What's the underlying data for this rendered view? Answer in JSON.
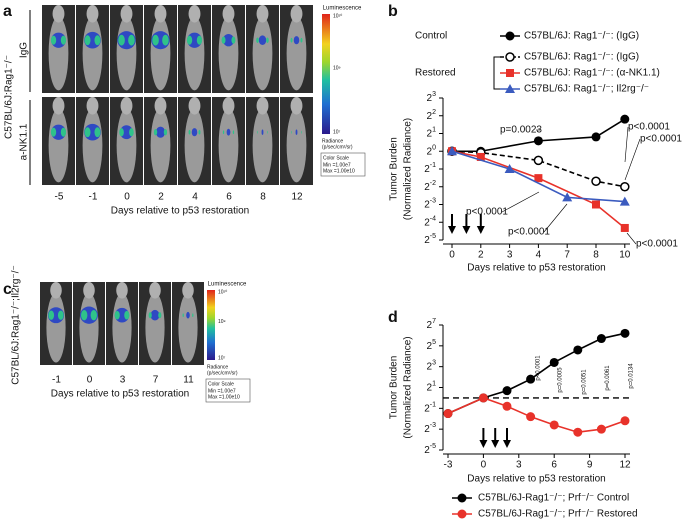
{
  "panels": {
    "a": {
      "letter": "a",
      "strain": "C57BL/6J:Rag1⁻/⁻",
      "row_labels": [
        "IgG",
        "a-NK1.1"
      ],
      "days": [
        "-5",
        "-1",
        "0",
        "2",
        "4",
        "6",
        "8",
        "12"
      ],
      "xlabel": "Days relative to p53 restoration",
      "colorbar": {
        "title": "Luminescence",
        "top": "10¹⁰",
        "mid": "10⁹",
        "bottom": "10⁷",
        "unit_label": "Radiance",
        "unit": "(p/sec/cm²/sr)",
        "scale_title": "Color Scale",
        "min": "Min =1.00e7",
        "max": "Max =1.00e10"
      }
    },
    "c": {
      "letter": "c",
      "strain": "C57BL/6J:Rag1⁻/⁻;Il2rg⁻/⁻",
      "days": [
        "-1",
        "0",
        "3",
        "7",
        "11"
      ],
      "xlabel": "Days relative to p53 restoration",
      "colorbar": {
        "title": "Luminescence",
        "top": "10¹⁰",
        "mid": "10⁹",
        "bottom": "10⁷",
        "unit_label": "Radiance",
        "unit": "(p/sec/cm²/sr)",
        "scale_title": "Color Scale",
        "min": "Min =1.00e7",
        "max": "Max =1.00e10"
      }
    }
  },
  "chart_data": [
    {
      "type": "line",
      "panel_label": "b",
      "legend_titles": [
        "Control",
        "Restored"
      ],
      "ylabel": "Tumor Burden",
      "ylabel2": "(Normalized Radiance)",
      "xlabel": "Days relative to p53 restoration",
      "log_base": 2,
      "categories": [
        "0",
        "2",
        "3",
        "4",
        "7",
        "8",
        "10"
      ],
      "ylim": [
        0.03125,
        8
      ],
      "yticks": [
        {
          "value": 8,
          "label": "2",
          "exponent": "3"
        },
        {
          "value": 4,
          "label": "2",
          "exponent": "2"
        },
        {
          "value": 2,
          "label": "2",
          "exponent": "1"
        },
        {
          "value": 1,
          "label": "2",
          "exponent": "0"
        },
        {
          "value": 0.5,
          "label": "2",
          "exponent": "-1"
        },
        {
          "value": 0.25,
          "label": "2",
          "exponent": "-2"
        },
        {
          "value": 0.125,
          "label": "2",
          "exponent": "-3"
        },
        {
          "value": 0.0625,
          "label": "2",
          "exponent": "-4"
        },
        {
          "value": 0.03125,
          "label": "2",
          "exponent": "-5"
        }
      ],
      "series": [
        {
          "name": "C57BL/6J: Rag1⁻/⁻: (IgG)",
          "color": "#000000",
          "marker": "circle",
          "dashed": false,
          "x": [
            "0",
            "2",
            "4",
            "8",
            "10"
          ],
          "values": [
            1,
            1,
            1.5,
            1.75,
            3.5
          ]
        },
        {
          "name": "C57BL/6J: Rag1⁻/⁻: (IgG)",
          "color": "#000000",
          "marker": "open-circle",
          "dashed": true,
          "x": [
            "0",
            "2",
            "4",
            "8",
            "10"
          ],
          "values": [
            1,
            0.95,
            0.7,
            0.31,
            0.25
          ]
        },
        {
          "name": "C57BL/6J: Rag1⁻/⁻: (α-NK1.1)",
          "color": "#e8322a",
          "marker": "square",
          "dashed": false,
          "x": [
            "0",
            "2",
            "4",
            "8",
            "10"
          ],
          "values": [
            1,
            0.8,
            0.35,
            0.125,
            0.05
          ]
        },
        {
          "name": "C57BL/6J: Rag1⁻/⁻; Il2rg⁻/⁻",
          "color": "#3b5bbf",
          "marker": "triangle",
          "dashed": false,
          "x": [
            "0",
            "3",
            "7",
            "10"
          ],
          "values": [
            1,
            0.5,
            0.165,
            0.14
          ]
        }
      ],
      "annotations": [
        "p=0.0023",
        "p<0.0001",
        "p<0.0001",
        "p<0.0001",
        "p<0.0001",
        "p<0.0001"
      ]
    },
    {
      "type": "line",
      "panel_label": "d",
      "ylabel": "Tumor Burden",
      "ylabel2": "(Normalized Radiance)",
      "xlabel": "Days relative to p53 restoration",
      "log_base": 2,
      "xlim": [
        -3,
        12
      ],
      "xticks": [
        -3,
        0,
        3,
        6,
        9,
        12
      ],
      "ylim": [
        0.03125,
        128
      ],
      "yticks": [
        {
          "value": 128,
          "label": "2",
          "exponent": "7"
        },
        {
          "value": 32,
          "label": "2",
          "exponent": "5"
        },
        {
          "value": 8,
          "label": "2",
          "exponent": "3"
        },
        {
          "value": 2,
          "label": "2",
          "exponent": "1"
        },
        {
          "value": 0.5,
          "label": "2",
          "exponent": "-1"
        },
        {
          "value": 0.125,
          "label": "2",
          "exponent": "-3"
        },
        {
          "value": 0.03125,
          "label": "2",
          "exponent": "-5"
        }
      ],
      "reference_line": 1,
      "series": [
        {
          "name": "C57BL/6J-Rag1⁻/⁻; Prf⁻/⁻ Control",
          "color": "#000000",
          "marker": "circle",
          "dashed": false,
          "x": [
            -3,
            0,
            2,
            4,
            6,
            8,
            10,
            12
          ],
          "values": [
            0.354,
            1,
            1.62,
            3.48,
            10.6,
            24.3,
            52,
            73.5
          ]
        },
        {
          "name": "C57BL/6J-Rag1⁻/⁻; Prf⁻/⁻ Restored",
          "color": "#e8322a",
          "marker": "circle",
          "dashed": false,
          "x": [
            -3,
            0,
            2,
            4,
            6,
            8,
            10,
            12
          ],
          "values": [
            0.354,
            1,
            0.574,
            0.287,
            0.165,
            0.102,
            0.125,
            0.218
          ]
        }
      ],
      "annotations": [
        "p<0.0001",
        "p=0.0005",
        "p=0.0051",
        "p=0.0061",
        "p=0.0134"
      ]
    }
  ]
}
